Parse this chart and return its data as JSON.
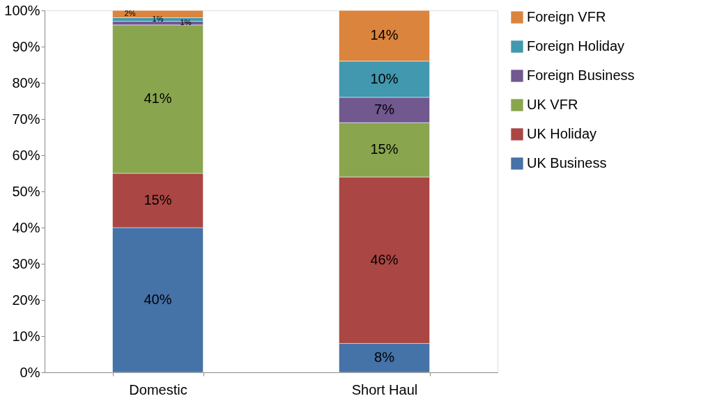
{
  "chart_data": {
    "type": "bar",
    "stacked": true,
    "categories": [
      "Domestic",
      "Short Haul"
    ],
    "series": [
      {
        "name": "UK Business",
        "color": "#4572a7",
        "values": [
          40,
          8
        ],
        "value_labels": [
          "40%",
          "8%"
        ]
      },
      {
        "name": "UK Holiday",
        "color": "#aa4643",
        "values": [
          15,
          46
        ],
        "value_labels": [
          "15%",
          "46%"
        ]
      },
      {
        "name": "UK VFR",
        "color": "#89a54e",
        "values": [
          41,
          15
        ],
        "value_labels": [
          "41%",
          "15%"
        ]
      },
      {
        "name": "Foreign Business",
        "color": "#71588f",
        "values": [
          1,
          7
        ],
        "value_labels": [
          "1%",
          "7%"
        ]
      },
      {
        "name": "Foreign Holiday",
        "color": "#4198af",
        "values": [
          1,
          10
        ],
        "value_labels": [
          "1%",
          "10%"
        ]
      },
      {
        "name": "Foreign VFR",
        "color": "#db843d",
        "values": [
          2,
          14
        ],
        "value_labels": [
          "2%",
          "14%"
        ]
      }
    ],
    "ylim": [
      0,
      100
    ],
    "yticks": [
      {
        "value": 0,
        "label": "0%"
      },
      {
        "value": 10,
        "label": "10%"
      },
      {
        "value": 20,
        "label": "20%"
      },
      {
        "value": 30,
        "label": "30%"
      },
      {
        "value": 40,
        "label": "40%"
      },
      {
        "value": 50,
        "label": "50%"
      },
      {
        "value": 60,
        "label": "60%"
      },
      {
        "value": 70,
        "label": "70%"
      },
      {
        "value": 80,
        "label": "80%"
      },
      {
        "value": 90,
        "label": "90%"
      },
      {
        "value": 100,
        "label": "100%"
      }
    ],
    "grid": false,
    "legend": "right"
  }
}
